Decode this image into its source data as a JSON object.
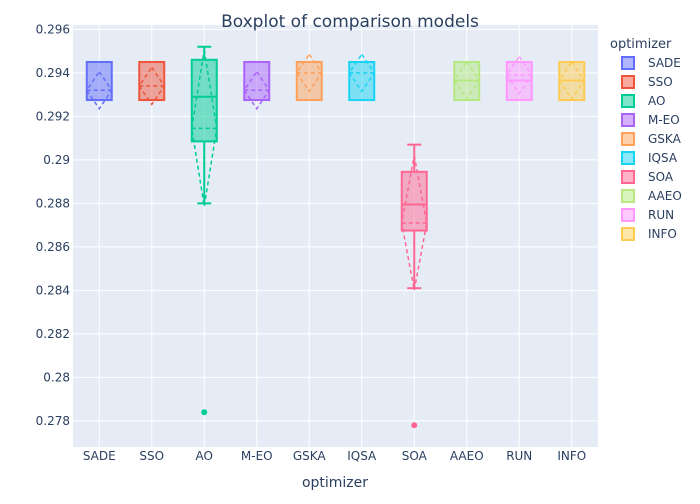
{
  "chart_data": {
    "type": "box",
    "title": "Boxplot of comparison models",
    "xlabel": "optimizer",
    "ylabel": "",
    "ylim": [
      0.2768,
      0.2962
    ],
    "yticks": [
      0.278,
      0.28,
      0.282,
      0.284,
      0.286,
      0.288,
      0.29,
      0.292,
      0.294,
      0.296
    ],
    "ytick_labels": [
      "0.278",
      "0.28",
      "0.282",
      "0.284",
      "0.286",
      "0.288",
      "0.29",
      "0.292",
      "0.294",
      "0.296"
    ],
    "legend": {
      "title": "optimizer",
      "position": "right"
    },
    "plot_bg": "#e5ecf6",
    "series": [
      {
        "name": "SADE",
        "color": "#636efa",
        "q1": 0.29275,
        "median": 0.29275,
        "q3": 0.2945,
        "lowerfence": 0.29275,
        "upperfence": 0.2945,
        "mean": 0.2932,
        "sd": 0.00085,
        "outliers": []
      },
      {
        "name": "SSO",
        "color": "#ef553b",
        "q1": 0.29275,
        "median": 0.29275,
        "q3": 0.2945,
        "lowerfence": 0.29275,
        "upperfence": 0.2945,
        "mean": 0.2934,
        "sd": 0.00085,
        "outliers": []
      },
      {
        "name": "AO",
        "color": "#00cc96",
        "q1": 0.29085,
        "median": 0.2929,
        "q3": 0.2946,
        "lowerfence": 0.288,
        "upperfence": 0.2952,
        "mean": 0.29145,
        "sd": 0.0036,
        "outliers": [
          0.2784
        ]
      },
      {
        "name": "M-EO",
        "color": "#ab63fa",
        "q1": 0.29275,
        "median": 0.29275,
        "q3": 0.2945,
        "lowerfence": 0.29275,
        "upperfence": 0.2945,
        "mean": 0.2932,
        "sd": 0.00085,
        "outliers": []
      },
      {
        "name": "GSKA",
        "color": "#ffa15a",
        "q1": 0.29275,
        "median": 0.2945,
        "q3": 0.2945,
        "lowerfence": 0.29275,
        "upperfence": 0.2945,
        "mean": 0.294,
        "sd": 0.00085,
        "outliers": []
      },
      {
        "name": "IQSA",
        "color": "#19d3f3",
        "q1": 0.29275,
        "median": 0.2945,
        "q3": 0.2945,
        "lowerfence": 0.29275,
        "upperfence": 0.2945,
        "mean": 0.294,
        "sd": 0.00085,
        "outliers": []
      },
      {
        "name": "SOA",
        "color": "#ff6692",
        "q1": 0.28675,
        "median": 0.28795,
        "q3": 0.28945,
        "lowerfence": 0.2841,
        "upperfence": 0.2907,
        "mean": 0.2871,
        "sd": 0.0031,
        "outliers": [
          0.2778
        ]
      },
      {
        "name": "AAEO",
        "color": "#b6e880",
        "q1": 0.29275,
        "median": 0.29365,
        "q3": 0.2945,
        "lowerfence": 0.29275,
        "upperfence": 0.2945,
        "mean": 0.29365,
        "sd": 0.00085,
        "outliers": []
      },
      {
        "name": "RUN",
        "color": "#ff97ff",
        "q1": 0.29275,
        "median": 0.29365,
        "q3": 0.2945,
        "lowerfence": 0.29275,
        "upperfence": 0.2945,
        "mean": 0.2939,
        "sd": 0.00085,
        "outliers": []
      },
      {
        "name": "INFO",
        "color": "#fecb52",
        "q1": 0.29275,
        "median": 0.29365,
        "q3": 0.2945,
        "lowerfence": 0.29275,
        "upperfence": 0.2945,
        "mean": 0.29365,
        "sd": 0.00085,
        "outliers": []
      }
    ]
  }
}
